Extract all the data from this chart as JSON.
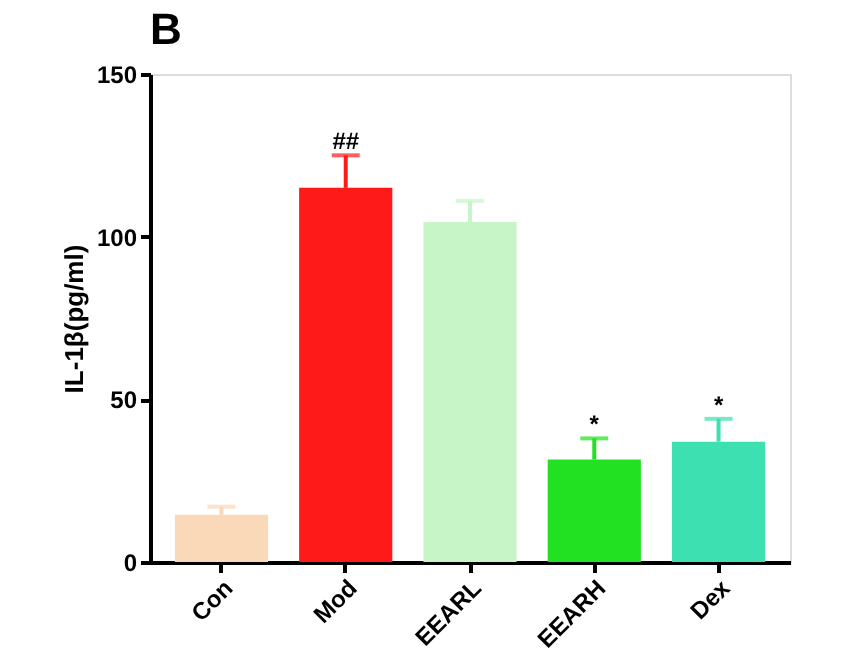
{
  "chart_data": {
    "type": "bar",
    "title": "B",
    "ylabel": "IL-1β(pg/ml)",
    "categories": [
      "Con",
      "Mod",
      "EEARL",
      "EEARH",
      "Dex"
    ],
    "values": [
      14.5,
      115,
      104.5,
      31.5,
      37
    ],
    "colors": [
      "#f9d9b8",
      "#ff1a1a",
      "#c8f5c8",
      "#22e022",
      "#3de0b0"
    ],
    "errors": [
      [
        14.5,
        17
      ],
      [
        115,
        125
      ],
      [
        104.5,
        111
      ],
      [
        31.5,
        38
      ],
      [
        37,
        44
      ]
    ],
    "ylim": [
      0,
      150
    ],
    "yticks": [
      0,
      50,
      100,
      150
    ],
    "grid": false,
    "legend": false,
    "annotations": [
      {
        "text": "##",
        "x": "Mod",
        "y": 125
      },
      {
        "text": "*",
        "x": "EEARH",
        "y": 38
      },
      {
        "text": "*",
        "x": "Dex",
        "y": 44
      }
    ]
  }
}
